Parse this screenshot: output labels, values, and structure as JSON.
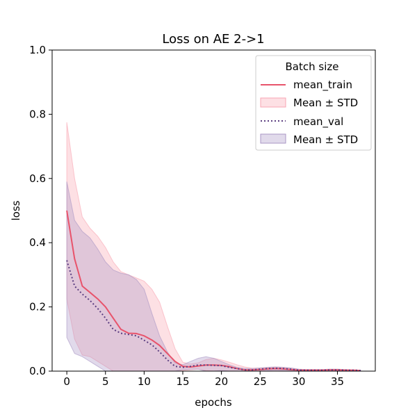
{
  "chart_data": {
    "type": "line",
    "title": "Loss on AE 2->1",
    "xlabel": "epochs",
    "ylabel": "loss",
    "xlim": [
      -1.9,
      39.9
    ],
    "ylim": [
      0,
      1.0
    ],
    "xticks": [
      0,
      5,
      10,
      15,
      20,
      25,
      30,
      35
    ],
    "yticks": [
      0.0,
      0.2,
      0.4,
      0.6,
      0.8,
      1.0
    ],
    "xtick_labels": [
      "0",
      "5",
      "10",
      "15",
      "20",
      "25",
      "30",
      "35"
    ],
    "ytick_labels": [
      "0.0",
      "0.2",
      "0.4",
      "0.6",
      "0.8",
      "1.0"
    ],
    "grid": false,
    "legend": {
      "title": "Batch size",
      "placement": "top-right",
      "entries": [
        "mean_train",
        "Mean ± STD",
        "mean_val",
        "Mean ± STD"
      ]
    },
    "x": [
      0,
      1,
      2,
      3,
      4,
      5,
      6,
      7,
      8,
      9,
      10,
      11,
      12,
      13,
      14,
      15,
      16,
      17,
      18,
      19,
      20,
      21,
      22,
      23,
      24,
      25,
      26,
      27,
      28,
      29,
      30,
      31,
      32,
      33,
      34,
      35,
      36,
      37,
      38
    ],
    "series": [
      {
        "name": "mean_train",
        "style": "solid",
        "color": "#e8536b",
        "band_color": "#f8a5b3",
        "values": [
          0.5,
          0.35,
          0.265,
          0.245,
          0.225,
          0.2,
          0.165,
          0.13,
          0.118,
          0.117,
          0.11,
          0.097,
          0.08,
          0.055,
          0.03,
          0.015,
          0.013,
          0.016,
          0.019,
          0.019,
          0.018,
          0.014,
          0.008,
          0.004,
          0.004,
          0.005,
          0.007,
          0.008,
          0.007,
          0.005,
          0.003,
          0.003,
          0.003,
          0.003,
          0.004,
          0.004,
          0.003,
          0.003,
          0.002
        ],
        "upper": [
          0.775,
          0.6,
          0.48,
          0.445,
          0.42,
          0.385,
          0.34,
          0.31,
          0.3,
          0.29,
          0.28,
          0.255,
          0.215,
          0.14,
          0.07,
          0.028,
          0.022,
          0.026,
          0.036,
          0.04,
          0.035,
          0.028,
          0.02,
          0.013,
          0.009,
          0.01,
          0.012,
          0.013,
          0.012,
          0.009,
          0.006,
          0.005,
          0.005,
          0.005,
          0.006,
          0.006,
          0.005,
          0.004,
          0.003
        ],
        "lower": [
          0.225,
          0.1,
          0.05,
          0.045,
          0.03,
          0.015,
          0.0,
          0.0,
          0.0,
          0.0,
          0.0,
          0.0,
          0.0,
          0.0,
          0.0,
          0.002,
          0.004,
          0.006,
          0.002,
          0.0,
          0.001,
          0.0,
          0.0,
          0.0,
          0.0,
          0.0,
          0.002,
          0.003,
          0.002,
          0.001,
          0.0,
          0.001,
          0.001,
          0.001,
          0.002,
          0.002,
          0.001,
          0.002,
          0.001
        ]
      },
      {
        "name": "mean_val",
        "style": "dotted",
        "color": "#5a3d80",
        "band_color": "#a996c5",
        "values": [
          0.345,
          0.265,
          0.24,
          0.22,
          0.195,
          0.165,
          0.13,
          0.118,
          0.114,
          0.11,
          0.096,
          0.082,
          0.06,
          0.035,
          0.015,
          0.012,
          0.015,
          0.019,
          0.019,
          0.018,
          0.017,
          0.012,
          0.008,
          0.004,
          0.004,
          0.006,
          0.008,
          0.009,
          0.008,
          0.006,
          0.003,
          0.003,
          0.003,
          0.003,
          0.004,
          0.004,
          0.003,
          0.003,
          0.002
        ],
        "upper": [
          0.59,
          0.47,
          0.435,
          0.415,
          0.38,
          0.34,
          0.315,
          0.305,
          0.3,
          0.285,
          0.255,
          0.18,
          0.11,
          0.06,
          0.025,
          0.02,
          0.03,
          0.04,
          0.045,
          0.04,
          0.03,
          0.02,
          0.012,
          0.008,
          0.008,
          0.01,
          0.012,
          0.013,
          0.012,
          0.01,
          0.006,
          0.005,
          0.005,
          0.005,
          0.006,
          0.006,
          0.005,
          0.004,
          0.003
        ],
        "lower": [
          0.105,
          0.055,
          0.045,
          0.03,
          0.015,
          0.0,
          0.0,
          0.0,
          0.0,
          0.0,
          0.0,
          0.0,
          0.0,
          0.0,
          0.0,
          0.005,
          0.006,
          0.006,
          0.0,
          0.0,
          0.002,
          0.0,
          0.0,
          0.0,
          0.0,
          0.0,
          0.002,
          0.003,
          0.002,
          0.001,
          0.0,
          0.001,
          0.001,
          0.001,
          0.002,
          0.002,
          0.001,
          0.002,
          0.001
        ]
      }
    ]
  }
}
